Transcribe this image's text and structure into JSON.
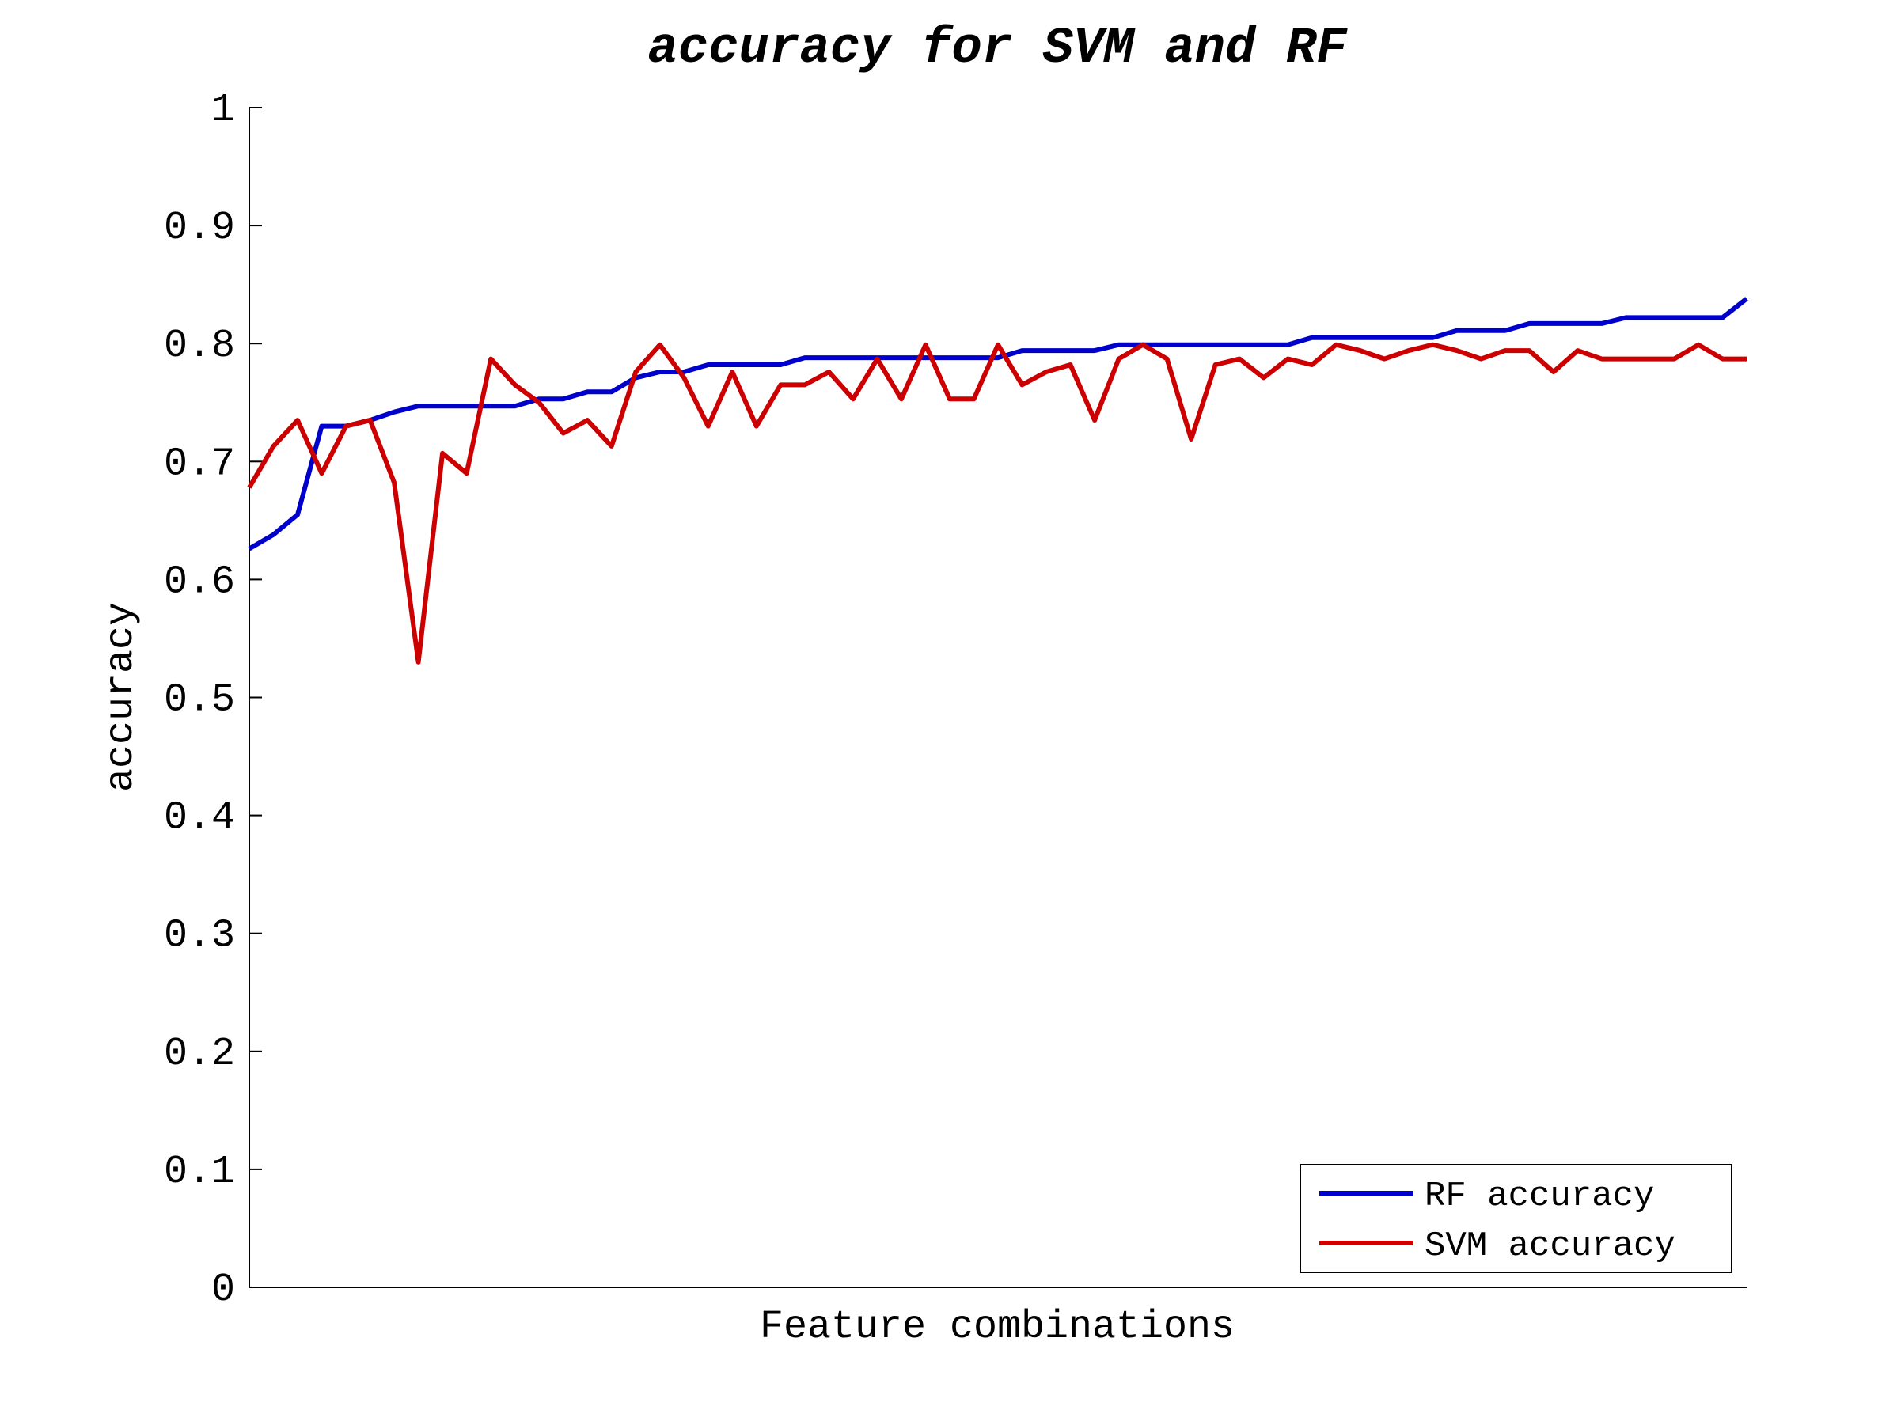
{
  "chart_data": {
    "type": "line",
    "title": "accuracy for SVM and RF",
    "xlabel": "Feature combinations",
    "ylabel": "accuracy",
    "ylim": [
      0,
      1
    ],
    "yticks": [
      "0",
      "0.1",
      "0.2",
      "0.3",
      "0.4",
      "0.5",
      "0.6",
      "0.7",
      "0.8",
      "0.9",
      "1"
    ],
    "xticks_shown": false,
    "grid": false,
    "legend_position": "bottom-right",
    "series": [
      {
        "name": "RF accuracy",
        "color": "#0000cc",
        "x": [
          1,
          2,
          3,
          4,
          5,
          6,
          7,
          8,
          9,
          10,
          11,
          12,
          13,
          14,
          15,
          16,
          17,
          18,
          19,
          20,
          21,
          22,
          23,
          24,
          25,
          26,
          27,
          28,
          29,
          30,
          31,
          32,
          33,
          34,
          35,
          36,
          37,
          38,
          39,
          40,
          41,
          42,
          43,
          44,
          45,
          46,
          47,
          48,
          49,
          50,
          51,
          52,
          53,
          54,
          55,
          56,
          57,
          58,
          59,
          60,
          61,
          62,
          63
        ],
        "values": [
          0.626,
          0.638,
          0.655,
          0.73,
          0.73,
          0.735,
          0.742,
          0.747,
          0.747,
          0.747,
          0.747,
          0.747,
          0.753,
          0.753,
          0.759,
          0.759,
          0.771,
          0.776,
          0.776,
          0.782,
          0.782,
          0.782,
          0.782,
          0.788,
          0.788,
          0.788,
          0.788,
          0.788,
          0.788,
          0.788,
          0.788,
          0.788,
          0.794,
          0.794,
          0.794,
          0.794,
          0.799,
          0.799,
          0.799,
          0.799,
          0.799,
          0.799,
          0.799,
          0.799,
          0.805,
          0.805,
          0.805,
          0.805,
          0.805,
          0.805,
          0.811,
          0.811,
          0.811,
          0.817,
          0.817,
          0.817,
          0.817,
          0.822,
          0.822,
          0.822,
          0.822,
          0.822,
          0.838
        ]
      },
      {
        "name": "SVM accuracy",
        "color": "#cc0000",
        "x": [
          1,
          2,
          3,
          4,
          5,
          6,
          7,
          8,
          9,
          10,
          11,
          12,
          13,
          14,
          15,
          16,
          17,
          18,
          19,
          20,
          21,
          22,
          23,
          24,
          25,
          26,
          27,
          28,
          29,
          30,
          31,
          32,
          33,
          34,
          35,
          36,
          37,
          38,
          39,
          40,
          41,
          42,
          43,
          44,
          45,
          46,
          47,
          48,
          49,
          50,
          51,
          52,
          53,
          54,
          55,
          56,
          57,
          58,
          59,
          60,
          61,
          62,
          63
        ],
        "values": [
          0.678,
          0.713,
          0.735,
          0.69,
          0.73,
          0.735,
          0.682,
          0.53,
          0.707,
          0.69,
          0.787,
          0.765,
          0.75,
          0.724,
          0.735,
          0.713,
          0.776,
          0.799,
          0.771,
          0.73,
          0.776,
          0.73,
          0.765,
          0.765,
          0.776,
          0.753,
          0.787,
          0.753,
          0.799,
          0.753,
          0.753,
          0.799,
          0.765,
          0.776,
          0.782,
          0.735,
          0.787,
          0.799,
          0.787,
          0.719,
          0.782,
          0.787,
          0.771,
          0.787,
          0.782,
          0.799,
          0.794,
          0.787,
          0.794,
          0.799,
          0.794,
          0.787,
          0.794,
          0.794,
          0.776,
          0.794,
          0.787,
          0.787,
          0.787,
          0.787,
          0.799,
          0.787,
          0.787
        ]
      }
    ]
  }
}
